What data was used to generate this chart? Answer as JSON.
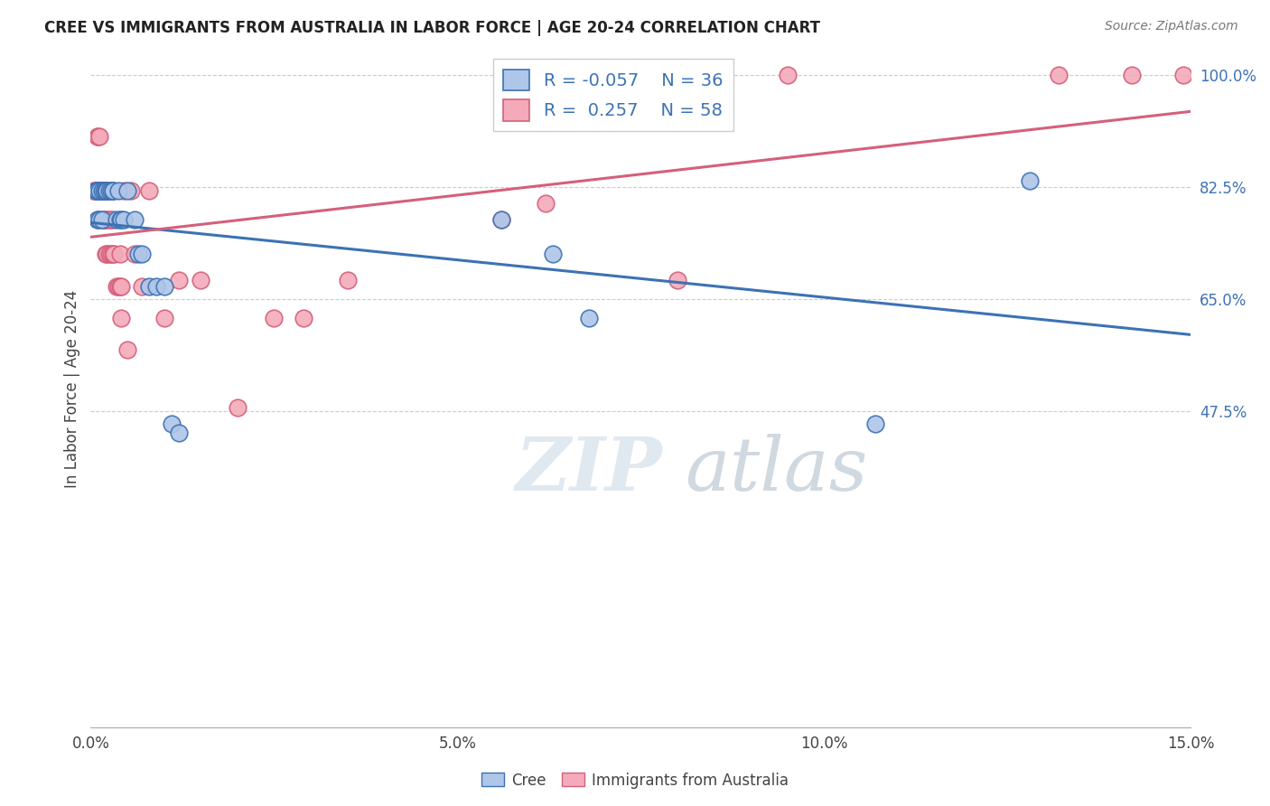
{
  "title": "CREE VS IMMIGRANTS FROM AUSTRALIA IN LABOR FORCE | AGE 20-24 CORRELATION CHART",
  "source": "Source: ZipAtlas.com",
  "ylabel": "In Labor Force | Age 20-24",
  "legend_label_blue": "Cree",
  "legend_label_pink": "Immigrants from Australia",
  "R_blue": -0.057,
  "N_blue": 36,
  "R_pink": 0.257,
  "N_pink": 58,
  "xmin": 0.0,
  "xmax": 0.15,
  "ymin": -0.02,
  "ymax": 1.04,
  "yticks": [
    0.475,
    0.65,
    0.825,
    1.0
  ],
  "ytick_labels": [
    "47.5%",
    "65.0%",
    "82.5%",
    "100.0%"
  ],
  "xticks": [
    0.0,
    0.05,
    0.1,
    0.15
  ],
  "xtick_labels": [
    "0.0%",
    "5.0%",
    "10.0%",
    "15.0%"
  ],
  "blue_color": "#AEC6E8",
  "pink_color": "#F4AABB",
  "line_blue": "#3D72B4",
  "line_pink": "#D4607A",
  "grid_color": "#CCCCCC",
  "blue_x": [
    0.0008,
    0.0008,
    0.001,
    0.001,
    0.001,
    0.0012,
    0.0012,
    0.0015,
    0.0015,
    0.0018,
    0.002,
    0.002,
    0.0022,
    0.0025,
    0.0028,
    0.003,
    0.003,
    0.0035,
    0.0038,
    0.004,
    0.0042,
    0.0045,
    0.005,
    0.006,
    0.0065,
    0.007,
    0.008,
    0.009,
    0.01,
    0.011,
    0.012,
    0.056,
    0.063,
    0.068,
    0.107,
    0.128
  ],
  "blue_y": [
    0.82,
    0.82,
    0.82,
    0.82,
    0.775,
    0.82,
    0.775,
    0.82,
    0.775,
    0.82,
    0.82,
    0.82,
    0.82,
    0.82,
    0.82,
    0.82,
    0.82,
    0.775,
    0.82,
    0.775,
    0.775,
    0.775,
    0.82,
    0.775,
    0.72,
    0.72,
    0.67,
    0.67,
    0.67,
    0.455,
    0.44,
    0.775,
    0.72,
    0.62,
    0.455,
    0.835
  ],
  "pink_x": [
    0.0005,
    0.0005,
    0.0008,
    0.0008,
    0.001,
    0.001,
    0.001,
    0.001,
    0.001,
    0.0012,
    0.0012,
    0.0015,
    0.0015,
    0.0015,
    0.0018,
    0.0018,
    0.0018,
    0.002,
    0.002,
    0.002,
    0.002,
    0.0022,
    0.0022,
    0.0025,
    0.0025,
    0.0025,
    0.0028,
    0.0028,
    0.003,
    0.003,
    0.003,
    0.0032,
    0.0035,
    0.0038,
    0.004,
    0.004,
    0.0042,
    0.0042,
    0.0045,
    0.005,
    0.0055,
    0.006,
    0.007,
    0.008,
    0.01,
    0.012,
    0.015,
    0.02,
    0.025,
    0.029,
    0.035,
    0.056,
    0.062,
    0.08,
    0.095,
    0.132,
    0.142,
    0.149
  ],
  "pink_y": [
    0.82,
    0.82,
    0.82,
    0.82,
    0.905,
    0.905,
    0.82,
    0.82,
    0.775,
    0.905,
    0.82,
    0.82,
    0.82,
    0.82,
    0.82,
    0.775,
    0.775,
    0.82,
    0.82,
    0.775,
    0.72,
    0.775,
    0.72,
    0.82,
    0.775,
    0.72,
    0.775,
    0.72,
    0.82,
    0.775,
    0.72,
    0.72,
    0.67,
    0.67,
    0.72,
    0.67,
    0.67,
    0.62,
    0.82,
    0.57,
    0.82,
    0.72,
    0.67,
    0.82,
    0.62,
    0.68,
    0.68,
    0.48,
    0.62,
    0.62,
    0.68,
    0.775,
    0.8,
    0.68,
    1.0,
    1.0,
    1.0,
    1.0
  ]
}
